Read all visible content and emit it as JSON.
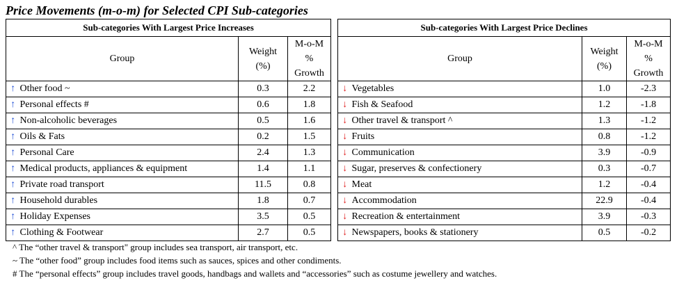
{
  "title": "Price Movements (m-o-m) for Selected CPI Sub-categories",
  "increases": {
    "heading": "Sub-categories With Largest Price Increases",
    "col_group": "Group",
    "col_weight": [
      "Weight",
      "(%)"
    ],
    "col_growth": [
      "M-o-M",
      "%",
      "Growth"
    ],
    "arrow": "↑",
    "rows": [
      {
        "group": "Other food ~",
        "weight": "0.3",
        "growth": "2.2"
      },
      {
        "group": "Personal effects #",
        "weight": "0.6",
        "growth": "1.8"
      },
      {
        "group": "Non-alcoholic beverages",
        "weight": "0.5",
        "growth": "1.6"
      },
      {
        "group": "Oils & Fats",
        "weight": "0.2",
        "growth": "1.5"
      },
      {
        "group": "Personal Care",
        "weight": "2.4",
        "growth": "1.3"
      },
      {
        "group": "Medical products, appliances & equipment",
        "weight": "1.4",
        "growth": "1.1"
      },
      {
        "group": "Private road transport",
        "weight": "11.5",
        "growth": "0.8"
      },
      {
        "group": "Household durables",
        "weight": "1.8",
        "growth": "0.7"
      },
      {
        "group": "Holiday Expenses",
        "weight": "3.5",
        "growth": "0.5"
      },
      {
        "group": "Clothing & Footwear",
        "weight": "2.7",
        "growth": "0.5"
      }
    ]
  },
  "declines": {
    "heading": "Sub-categories With Largest Price Declines",
    "col_group": "Group",
    "col_weight": [
      "Weight",
      "(%)"
    ],
    "col_growth": [
      "M-o-M",
      "%",
      "Growth"
    ],
    "arrow": "↓",
    "rows": [
      {
        "group": "Vegetables",
        "weight": "1.0",
        "growth": "-2.3"
      },
      {
        "group": "Fish & Seafood",
        "weight": "1.2",
        "growth": "-1.8"
      },
      {
        "group": "Other travel & transport ^",
        "weight": "1.3",
        "growth": "-1.2"
      },
      {
        "group": "Fruits",
        "weight": "0.8",
        "growth": "-1.2"
      },
      {
        "group": "Communication",
        "weight": "3.9",
        "growth": "-0.9"
      },
      {
        "group": "Sugar, preserves & confectionery",
        "weight": "0.3",
        "growth": "-0.7"
      },
      {
        "group": "Meat",
        "weight": "1.2",
        "growth": "-0.4"
      },
      {
        "group": "Accommodation",
        "weight": "22.9",
        "growth": "-0.4"
      },
      {
        "group": "Recreation & entertainment",
        "weight": "3.9",
        "growth": "-0.3"
      },
      {
        "group": "Newspapers, books & stationery",
        "weight": "0.5",
        "growth": "-0.2"
      }
    ]
  },
  "notes": [
    "^ The “other travel & transport\" group includes sea transport, air transport, etc.",
    "~ The “other food” group includes food items such as sauces, spices and other condiments.",
    "# The “personal effects” group includes travel goods, handbags and wallets and “accessories” such as costume jewellery and watches."
  ],
  "colors": {
    "up_arrow": "#1f4fd6",
    "down_arrow": "#e02020"
  }
}
